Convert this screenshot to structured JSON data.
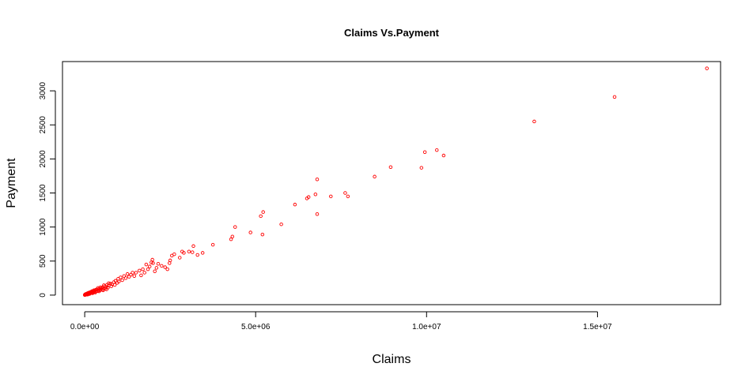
{
  "chart_data": {
    "type": "scatter",
    "title": "Claims Vs.Payment",
    "xlabel": "Claims",
    "ylabel": "Payment",
    "xlim": [
      -650000,
      18600000
    ],
    "ylim": [
      -140,
      3430
    ],
    "x_ticks": [
      0,
      5000000,
      10000000,
      15000000
    ],
    "x_tick_labels": [
      "0.0e+00",
      "5.0e+06",
      "1.0e+07",
      "1.5e+07"
    ],
    "y_ticks": [
      0,
      500,
      1000,
      1500,
      2000,
      2500,
      3000
    ],
    "y_tick_labels": [
      "0",
      "500",
      "1000",
      "1500",
      "2000",
      "2500",
      "3000"
    ],
    "grid": false,
    "legend": "none",
    "marker": "open-circle",
    "point_color": "#ff0000",
    "series": [
      {
        "points": [
          [
            18200000,
            3330
          ],
          [
            15500000,
            2910
          ],
          [
            13150000,
            2550
          ],
          [
            10500000,
            2050
          ],
          [
            10300000,
            2130
          ],
          [
            9950000,
            2100
          ],
          [
            9850000,
            1870
          ],
          [
            8950000,
            1880
          ],
          [
            8480000,
            1740
          ],
          [
            7700000,
            1450
          ],
          [
            7620000,
            1500
          ],
          [
            7200000,
            1450
          ],
          [
            6800000,
            1700
          ],
          [
            6750000,
            1480
          ],
          [
            6800000,
            1190
          ],
          [
            6550000,
            1440
          ],
          [
            6500000,
            1420
          ],
          [
            6150000,
            1330
          ],
          [
            5750000,
            1040
          ],
          [
            5220000,
            1220
          ],
          [
            5150000,
            1160
          ],
          [
            5200000,
            890
          ],
          [
            4850000,
            920
          ],
          [
            4400000,
            1000
          ],
          [
            4320000,
            860
          ],
          [
            4280000,
            820
          ],
          [
            3750000,
            740
          ],
          [
            3450000,
            620
          ],
          [
            3300000,
            590
          ],
          [
            3180000,
            720
          ],
          [
            3150000,
            630
          ],
          [
            3050000,
            640
          ],
          [
            2900000,
            620
          ],
          [
            2850000,
            640
          ],
          [
            2780000,
            550
          ],
          [
            2620000,
            600
          ],
          [
            2550000,
            580
          ],
          [
            2500000,
            510
          ],
          [
            2480000,
            470
          ],
          [
            2420000,
            380
          ],
          [
            2350000,
            410
          ],
          [
            2250000,
            430
          ],
          [
            2150000,
            460
          ],
          [
            2100000,
            400
          ],
          [
            2050000,
            350
          ],
          [
            2000000,
            470
          ],
          [
            1980000,
            520
          ],
          [
            1950000,
            480
          ],
          [
            1900000,
            420
          ],
          [
            1850000,
            380
          ],
          [
            1800000,
            450
          ],
          [
            1750000,
            330
          ],
          [
            1700000,
            380
          ],
          [
            1650000,
            290
          ],
          [
            1600000,
            360
          ],
          [
            1500000,
            330
          ],
          [
            1450000,
            280
          ],
          [
            1400000,
            330
          ],
          [
            1350000,
            300
          ],
          [
            1300000,
            270
          ],
          [
            1250000,
            310
          ],
          [
            1200000,
            250
          ],
          [
            1150000,
            280
          ],
          [
            1100000,
            220
          ],
          [
            1050000,
            260
          ],
          [
            1000000,
            200
          ],
          [
            980000,
            240
          ],
          [
            950000,
            180
          ],
          [
            900000,
            210
          ],
          [
            880000,
            150
          ],
          [
            850000,
            190
          ],
          [
            800000,
            160
          ],
          [
            780000,
            130
          ],
          [
            750000,
            170
          ],
          [
            700000,
            140
          ],
          [
            680000,
            110
          ],
          [
            650000,
            150
          ],
          [
            620000,
            120
          ],
          [
            600000,
            95
          ],
          [
            580000,
            130
          ],
          [
            550000,
            100
          ],
          [
            520000,
            80
          ],
          [
            500000,
            110
          ],
          [
            480000,
            90
          ],
          [
            450000,
            70
          ],
          [
            430000,
            95
          ],
          [
            400000,
            75
          ],
          [
            380000,
            60
          ],
          [
            360000,
            85
          ],
          [
            340000,
            55
          ],
          [
            320000,
            70
          ],
          [
            300000,
            50
          ],
          [
            280000,
            62
          ],
          [
            260000,
            40
          ],
          [
            240000,
            52
          ],
          [
            220000,
            35
          ],
          [
            200000,
            45
          ],
          [
            185000,
            30
          ],
          [
            170000,
            38
          ],
          [
            150000,
            25
          ],
          [
            135000,
            32
          ],
          [
            120000,
            20
          ],
          [
            105000,
            26
          ],
          [
            90000,
            15
          ],
          [
            75000,
            20
          ],
          [
            60000,
            10
          ],
          [
            45000,
            14
          ],
          [
            30000,
            6
          ],
          [
            20000,
            9
          ],
          [
            10000,
            3
          ],
          [
            5000,
            5
          ],
          [
            2000,
            2
          ],
          [
            700000,
            175
          ],
          [
            560000,
            145
          ],
          [
            460000,
            115
          ],
          [
            390000,
            105
          ],
          [
            330000,
            80
          ],
          [
            270000,
            72
          ],
          [
            210000,
            58
          ],
          [
            160000,
            44
          ],
          [
            110000,
            35
          ],
          [
            70000,
            25
          ],
          [
            40000,
            18
          ],
          [
            15000,
            12
          ],
          [
            640000,
            85
          ],
          [
            540000,
            70
          ],
          [
            420000,
            55
          ],
          [
            310000,
            38
          ],
          [
            230000,
            28
          ],
          [
            140000,
            16
          ],
          [
            85000,
            8
          ]
        ]
      }
    ]
  }
}
